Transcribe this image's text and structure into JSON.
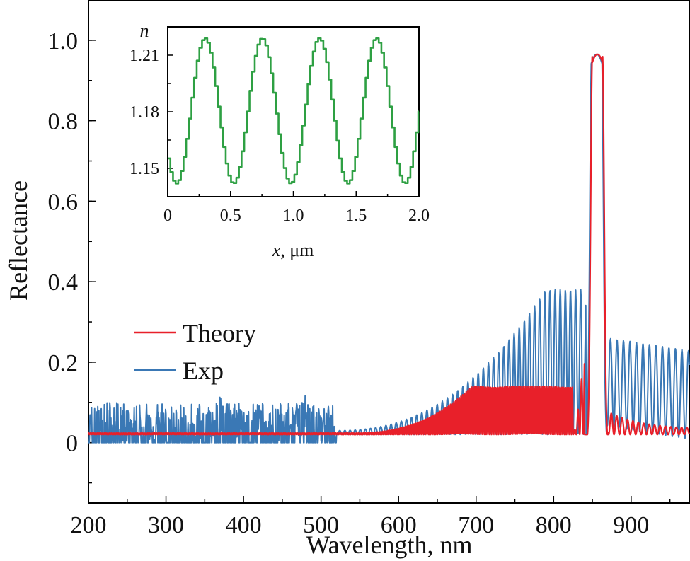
{
  "chart_data": [
    {
      "type": "line",
      "xlabel": "Wavelength, nm",
      "ylabel": "Reflectance",
      "xlim": [
        200,
        975
      ],
      "ylim": [
        -0.15,
        1.1
      ],
      "xticks": [
        "200",
        "300",
        "400",
        "500",
        "600",
        "700",
        "800",
        "900"
      ],
      "xtick_values": [
        200,
        300,
        400,
        500,
        600,
        700,
        800,
        900
      ],
      "yticks": [
        "0",
        "0.2",
        "0.4",
        "0.6",
        "0.8",
        "1.0"
      ],
      "ytick_values": [
        0,
        0.2,
        0.4,
        0.6,
        0.8,
        1.0
      ],
      "legend": {
        "position": "center-left"
      },
      "series": [
        {
          "name": "Theory",
          "color": "#e8202a",
          "x": [
            200,
            300,
            400,
            500,
            560,
            600,
            650,
            700,
            750,
            790,
            820,
            838,
            843,
            848,
            851,
            854,
            856,
            859,
            862,
            865,
            868,
            880,
            900,
            920,
            950,
            975
          ],
          "y": [
            0.02,
            0.02,
            0.02,
            0.02,
            0.02,
            0.02,
            0.025,
            0.035,
            0.05,
            0.07,
            0.1,
            0.2,
            0.24,
            0.3,
            0.75,
            0.95,
            0.965,
            0.95,
            0.75,
            0.3,
            0.06,
            0.045,
            0.04,
            0.03,
            0.025,
            0.025
          ]
        },
        {
          "name": "Exp",
          "color": "#3a78b5",
          "x": [
            200,
            300,
            400,
            500,
            550,
            600,
            650,
            700,
            750,
            800,
            830,
            840,
            845,
            850,
            853,
            856,
            859,
            862,
            866,
            870,
            880,
            900,
            950,
            975
          ],
          "y": [
            0.0,
            0.0,
            0.0,
            0.01,
            0.02,
            0.04,
            0.08,
            0.13,
            0.17,
            0.23,
            0.3,
            0.38,
            0.3,
            0.75,
            0.95,
            0.955,
            0.95,
            0.75,
            0.3,
            0.25,
            0.26,
            0.25,
            0.23,
            0.21
          ]
        }
      ],
      "notes_visual": {
        "theory_oscillation": "dense fringes of small amplitude around 0.02 below ~600 nm, growing sidelobes toward the 857 nm peak",
        "exp_noise": "noisy between 200 and 500 nm, spanning about -0.15 to 0.09",
        "exp_fringes": "fringes growing from ~0.02 at 550 nm to ~0.25 near 840 nm, and about 0.04–0.26 beyond 870 nm"
      }
    },
    {
      "type": "line",
      "xlabel": "x, μm",
      "ylabel": "n",
      "xlim": [
        0,
        2.0
      ],
      "ylim": [
        1.135,
        1.225
      ],
      "xticks": [
        "0",
        "0.5",
        "1.0",
        "1.5",
        "2.0"
      ],
      "xtick_values": [
        0,
        0.5,
        1.0,
        1.5,
        2.0
      ],
      "yticks": [
        "1.15",
        "1.18",
        "1.21"
      ],
      "ytick_values": [
        1.15,
        1.18,
        1.21
      ],
      "series": [
        {
          "color": "#2ea043",
          "period": 0.455,
          "min": 1.142,
          "max": 1.219,
          "x_of_first_max": 0.3,
          "step_width": 0.021
        }
      ]
    }
  ]
}
